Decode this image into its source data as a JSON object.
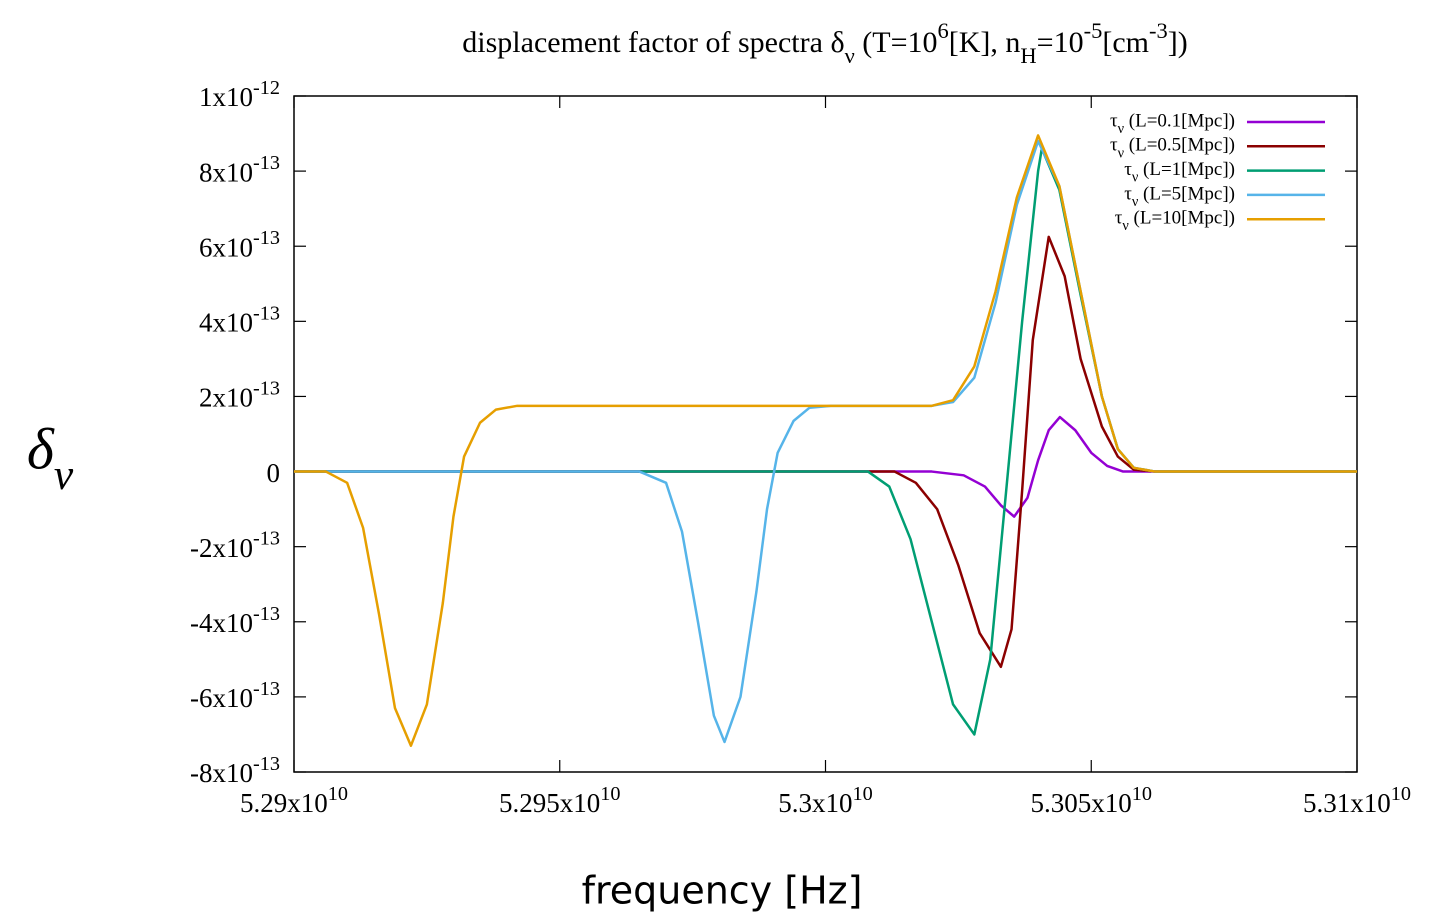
{
  "chart_data": {
    "type": "line",
    "title": "displacement factor of spectra δ_ν (T=10^6[K], n_H=10^-5[cm^-3])",
    "x_label": "frequency [Hz]",
    "y_label": "δ_ν",
    "xlim": [
      52900000000.0,
      53100000000.0
    ],
    "ylim": [
      -8e-13,
      1e-12
    ],
    "xticks": [
      {
        "value": 52900000000.0,
        "label": "5.29x10^10"
      },
      {
        "value": 52950000000.0,
        "label": "5.295x10^10"
      },
      {
        "value": 53000000000.0,
        "label": "5.3x10^10"
      },
      {
        "value": 53050000000.0,
        "label": "5.305x10^10"
      },
      {
        "value": 53100000000.0,
        "label": "5.31x10^10"
      }
    ],
    "yticks": [
      {
        "value": -8e-13,
        "label": "-8x10^-13"
      },
      {
        "value": -6e-13,
        "label": "-6x10^-13"
      },
      {
        "value": -4e-13,
        "label": "-4x10^-13"
      },
      {
        "value": -2e-13,
        "label": "-2x10^-13"
      },
      0,
      {
        "value": 2e-13,
        "label": "2x10^-13"
      },
      {
        "value": 4e-13,
        "label": "4x10^-13"
      },
      {
        "value": 6e-13,
        "label": "6x10^-13"
      },
      {
        "value": 8e-13,
        "label": "8x10^-13"
      },
      {
        "value": 1e-12,
        "label": "1x10^-12"
      }
    ],
    "legend": "top-right",
    "series": [
      {
        "name": "τ_ν (L=0.1[Mpc])",
        "color": "#9400d3",
        "x": [
          52900000000.0,
          53020000000.0,
          53026000000.0,
          53030000000.0,
          53033000000.0,
          53035500000.0,
          53038000000.0,
          53040000000.0,
          53042000000.0,
          53044100000.0,
          53047000000.0,
          53050000000.0,
          53053000000.0,
          53056000000.0,
          53100000000.0
        ],
        "values": [
          0,
          0,
          -1e-14,
          -4e-14,
          -9e-14,
          -1.2e-13,
          -7e-14,
          3e-14,
          1.1e-13,
          1.45e-13,
          1.1e-13,
          5e-14,
          1.5e-14,
          0,
          0
        ]
      },
      {
        "name": "τ_ν (L=0.5[Mpc])",
        "color": "#8b0000",
        "x": [
          52900000000.0,
          53013000000.0,
          53017000000.0,
          53021000000.0,
          53025000000.0,
          53029000000.0,
          53033000000.0,
          53035000000.0,
          53037000000.0,
          53039000000.0,
          53042000000.0,
          53045000000.0,
          53048000000.0,
          53052000000.0,
          53055000000.0,
          53058000000.0,
          53062000000.0,
          53100000000.0
        ],
        "values": [
          0,
          0,
          -3e-14,
          -1e-13,
          -2.5e-13,
          -4.3e-13,
          -5.2e-13,
          -4.2e-13,
          -5e-14,
          3.5e-13,
          6.25e-13,
          5.2e-13,
          3e-13,
          1.2e-13,
          4e-14,
          5e-15,
          0,
          0
        ]
      },
      {
        "name": "τ_ν (L=1[Mpc])",
        "color": "#009e73",
        "x": [
          52900000000.0,
          53008000000.0,
          53012000000.0,
          53016000000.0,
          53020000000.0,
          53024000000.0,
          53028000000.0,
          53031000000.0,
          53034000000.0,
          53037000000.0,
          53040000000.0,
          53040700000.0,
          53044000000.0,
          53048000000.0,
          53052000000.0,
          53055000000.0,
          53058000000.0,
          53062000000.0,
          53100000000.0
        ],
        "values": [
          0,
          0,
          -4e-14,
          -1.8e-13,
          -4e-13,
          -6.2e-13,
          -7e-13,
          -5e-13,
          -5e-14,
          4e-13,
          8e-13,
          8.6e-13,
          7.5e-13,
          4.7e-13,
          2e-13,
          6e-14,
          1e-14,
          0,
          0
        ]
      },
      {
        "name": "τ_ν (L=5[Mpc])",
        "color": "#56b4e9",
        "x": [
          52900000000.0,
          52965000000.0,
          52970000000.0,
          52973000000.0,
          52976000000.0,
          52979000000.0,
          52981000000.0,
          52984000000.0,
          52987000000.0,
          52989000000.0,
          52991000000.0,
          52994000000.0,
          52997000000.0,
          53001000000.0,
          53020000000.0,
          53024000000.0,
          53028000000.0,
          53032000000.0,
          53036000000.0,
          53040000000.0,
          53044000000.0,
          53048000000.0,
          53052000000.0,
          53055000000.0,
          53058000000.0,
          53062000000.0,
          53100000000.0
        ],
        "values": [
          0,
          0,
          -3e-14,
          -1.6e-13,
          -4e-13,
          -6.5e-13,
          -7.2e-13,
          -6e-13,
          -3.2e-13,
          -1e-13,
          5e-14,
          1.35e-13,
          1.7e-13,
          1.75e-13,
          1.75e-13,
          1.85e-13,
          2.5e-13,
          4.5e-13,
          7.1e-13,
          8.8e-13,
          7.6e-13,
          4.8e-13,
          2e-13,
          6e-14,
          1e-14,
          0,
          0
        ]
      },
      {
        "name": "τ_ν (L=10[Mpc])",
        "color": "#e69f00",
        "x": [
          52900000000.0,
          52906000000.0,
          52910000000.0,
          52913000000.0,
          52916000000.0,
          52919000000.0,
          52922000000.0,
          52925000000.0,
          52928000000.0,
          52930000000.0,
          52932000000.0,
          52935000000.0,
          52938000000.0,
          52942000000.0,
          53020000000.0,
          53024000000.0,
          53028000000.0,
          53032000000.0,
          53036000000.0,
          53040000000.0,
          53044000000.0,
          53048000000.0,
          53052000000.0,
          53055000000.0,
          53058000000.0,
          53062000000.0,
          53100000000.0
        ],
        "values": [
          0,
          0,
          -3e-14,
          -1.5e-13,
          -3.8e-13,
          -6.3e-13,
          -7.3e-13,
          -6.2e-13,
          -3.5e-13,
          -1.2e-13,
          4e-14,
          1.3e-13,
          1.65e-13,
          1.75e-13,
          1.75e-13,
          1.9e-13,
          2.8e-13,
          4.8e-13,
          7.3e-13,
          8.95e-13,
          7.6e-13,
          4.8e-13,
          2e-13,
          6e-14,
          1e-14,
          0,
          0
        ]
      }
    ]
  }
}
